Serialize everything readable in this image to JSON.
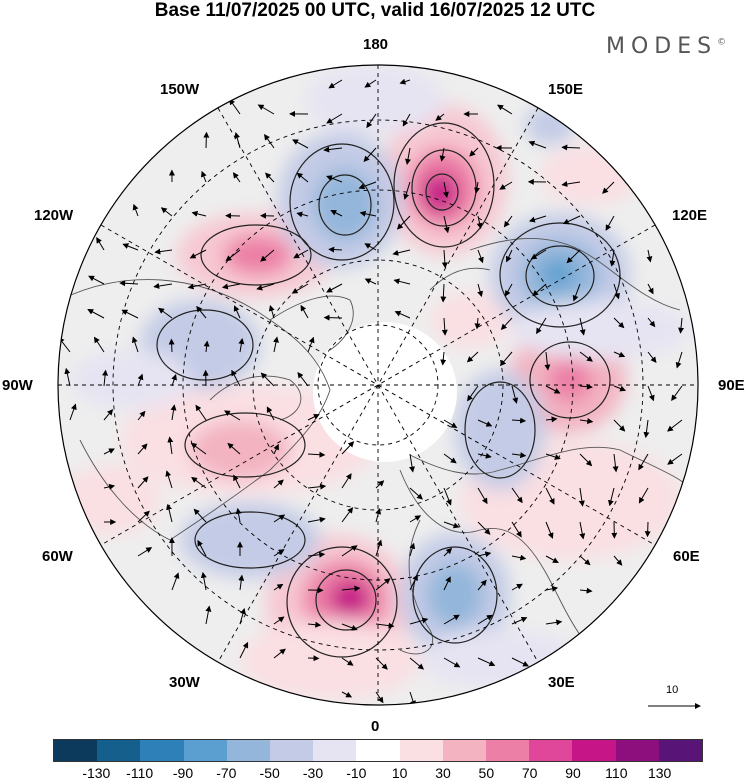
{
  "title": "Base 11/07/2025 00 UTC, valid 16/07/2025 12 UTC",
  "brand": "MODES",
  "brand_mark": "©",
  "longitude_labels": {
    "top": "180",
    "bottom": "0",
    "left": "90W",
    "right": "90E",
    "upper_left": "150W",
    "upper_right": "150E",
    "mid_upper_left": "120W",
    "mid_upper_right": "120E",
    "lower_left": "60W",
    "lower_right": "60E",
    "bottom_left": "30W",
    "bottom_right": "30E"
  },
  "reference_vector": "10",
  "colorbar": {
    "ticks": [
      "-130",
      "-110",
      "-90",
      "-70",
      "-50",
      "-30",
      "-10",
      "10",
      "30",
      "50",
      "70",
      "90",
      "110",
      "130"
    ],
    "colors": [
      "#0c3a5c",
      "#155f8d",
      "#2d80b8",
      "#5a9fd0",
      "#93b6da",
      "#c3cbe6",
      "#e6e4f2",
      "#ffffff",
      "#fadfe3",
      "#f3b3c1",
      "#ec7fa6",
      "#e0479a",
      "#c51586",
      "#8d0f7e",
      "#581476"
    ]
  }
}
